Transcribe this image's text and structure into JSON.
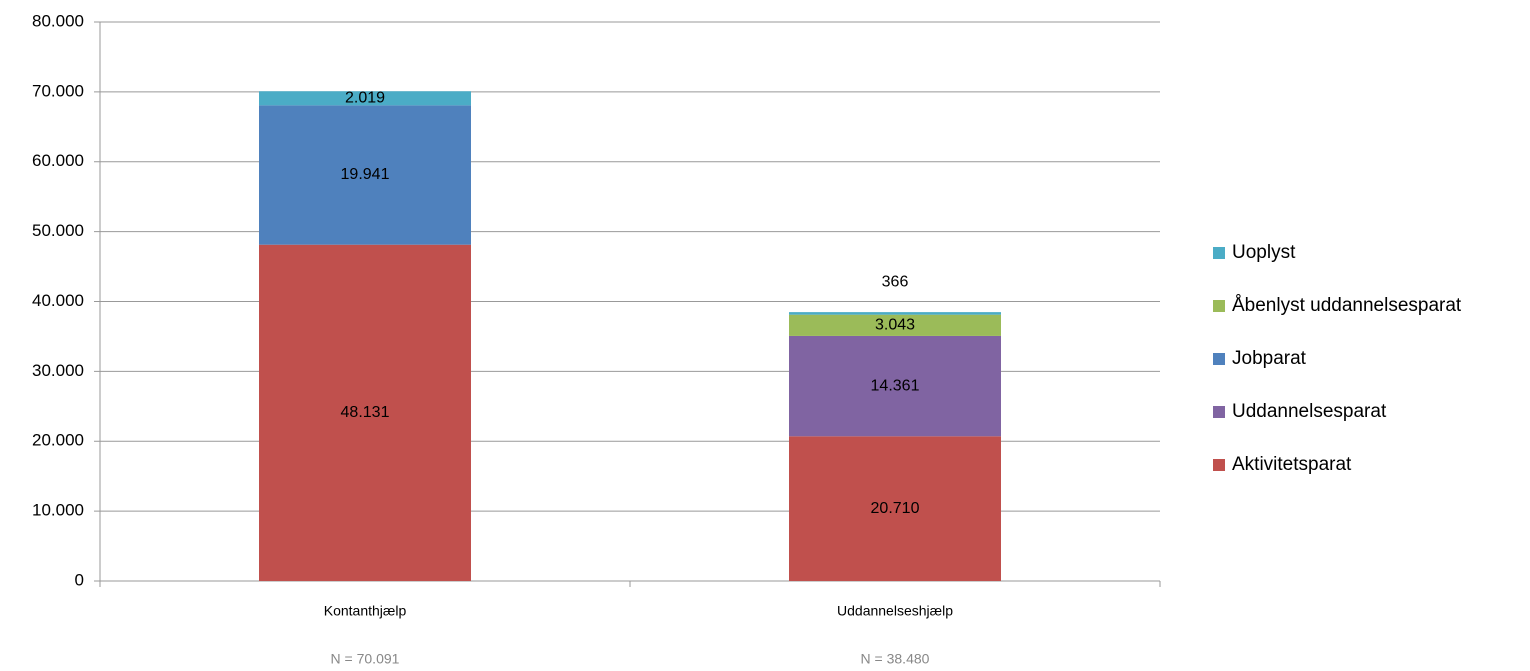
{
  "chart_data": {
    "type": "stacked_bar",
    "categories": [
      "Kontanthjælp",
      "Uddannelseshjælp"
    ],
    "annotations": [
      "N = 70.091",
      "N = 38.480"
    ],
    "series": [
      {
        "name": "Aktivitetsparat",
        "color": "#c0504d",
        "values": [
          48131,
          20710
        ],
        "value_labels": [
          "48.131",
          "20.710"
        ]
      },
      {
        "name": "Uddannelsesparat",
        "color": "#8064a2",
        "values": [
          null,
          14361
        ],
        "value_labels": [
          null,
          "14.361"
        ]
      },
      {
        "name": "Jobparat",
        "color": "#4f81bd",
        "values": [
          19941,
          null
        ],
        "value_labels": [
          "19.941",
          null
        ]
      },
      {
        "name": "Åbenlyst uddannelsesparat",
        "color": "#9bbb59",
        "values": [
          null,
          3043
        ],
        "value_labels": [
          null,
          "3.043"
        ]
      },
      {
        "name": "Uoplyst",
        "color": "#4bacc6",
        "values": [
          2019,
          366
        ],
        "value_labels": [
          "2.019",
          "366"
        ]
      }
    ],
    "ylim": [
      0,
      80000
    ],
    "yticks": [
      0,
      {
        "value": 10000,
        "label": "10.000"
      },
      {
        "value": 20000,
        "label": "20.000"
      },
      {
        "value": 30000,
        "label": "30.000"
      },
      {
        "value": 40000,
        "label": "40.000"
      },
      {
        "value": 50000,
        "label": "50.000"
      },
      {
        "value": 60000,
        "label": "60.000"
      },
      {
        "value": 70000,
        "label": "70.000"
      },
      {
        "value": 80000,
        "label": "80.000"
      }
    ],
    "grid": true,
    "legend": "right"
  }
}
